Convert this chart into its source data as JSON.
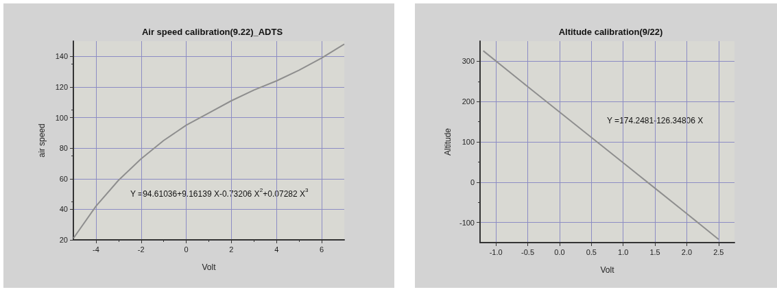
{
  "chart_data": [
    {
      "type": "line",
      "title": "Air speed calibration(9.22)_ADTS",
      "xlabel": "Volt",
      "ylabel": "air speed",
      "x": [
        -5,
        -4,
        -3,
        -2,
        -1,
        0,
        1,
        2,
        3,
        4,
        5,
        6,
        7
      ],
      "series": [
        {
          "color": "#8e8e8e",
          "values": [
            21,
            42,
            59,
            73,
            85,
            95,
            103,
            111,
            118,
            124,
            131,
            139,
            148
          ]
        }
      ],
      "xlim": [
        -5,
        7
      ],
      "xticks": [
        -4,
        -2,
        0,
        2,
        4,
        6
      ],
      "ylim": [
        20,
        150
      ],
      "yticks": [
        20,
        40,
        60,
        80,
        100,
        120,
        140
      ],
      "grid": true,
      "marker": "none",
      "line_style": "solid",
      "annotations": [
        "Y =94.61036+9.16139 X-0.73206 X$^{2}$+0.07282 X$^{3}$"
      ]
    },
    {
      "type": "line",
      "title": "Altitude calibration(9/22)",
      "xlabel": "Volt",
      "ylabel": "Altitude",
      "x": [
        -1.2,
        -0.5,
        0,
        0.5,
        1,
        1.5,
        2,
        2.5
      ],
      "series": [
        {
          "color": "#8e8e8e",
          "values": [
            326,
            237,
            174,
            111,
            48,
            -15,
            -78,
            -142
          ]
        }
      ],
      "xlim": [
        -1.25,
        2.75
      ],
      "xticks": [
        {
          "value": -1,
          "label": "-1.0"
        },
        -0.5,
        {
          "value": 0,
          "label": "0.0"
        },
        0.5,
        {
          "value": 1,
          "label": "1.0"
        },
        1.5,
        {
          "value": 2,
          "label": "2.0"
        },
        2.5
      ],
      "ylim": [
        -150,
        350
      ],
      "yticks": [
        -100,
        0,
        100,
        200,
        300
      ],
      "grid": true,
      "marker": "none",
      "line_style": "solid",
      "annotations": [
        "Y =174.2481-126.34806 X"
      ]
    }
  ]
}
